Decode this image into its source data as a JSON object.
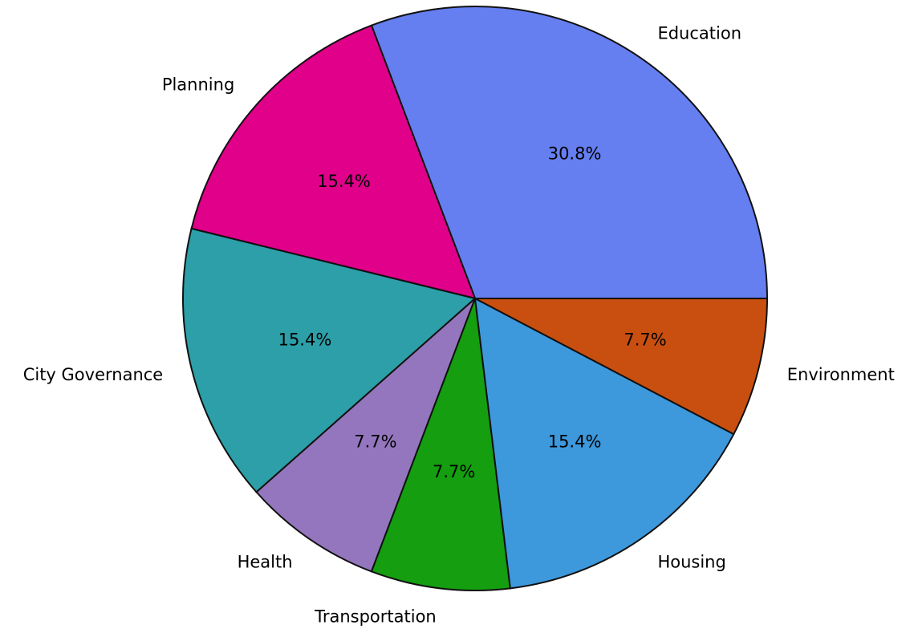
{
  "chart_data": {
    "type": "pie",
    "categories": [
      "Education",
      "Planning",
      "City Governance",
      "Health",
      "Transportation",
      "Housing",
      "Environment"
    ],
    "values": [
      30.8,
      15.4,
      15.4,
      7.7,
      7.7,
      15.4,
      7.7
    ],
    "value_labels": [
      "30.8%",
      "15.4%",
      "15.4%",
      "7.7%",
      "7.7%",
      "15.4%",
      "7.7%"
    ],
    "colors": [
      "#657ef0",
      "#e0008a",
      "#2c9fa8",
      "#9476be",
      "#149e10",
      "#3d98dc",
      "#c94f10"
    ]
  }
}
